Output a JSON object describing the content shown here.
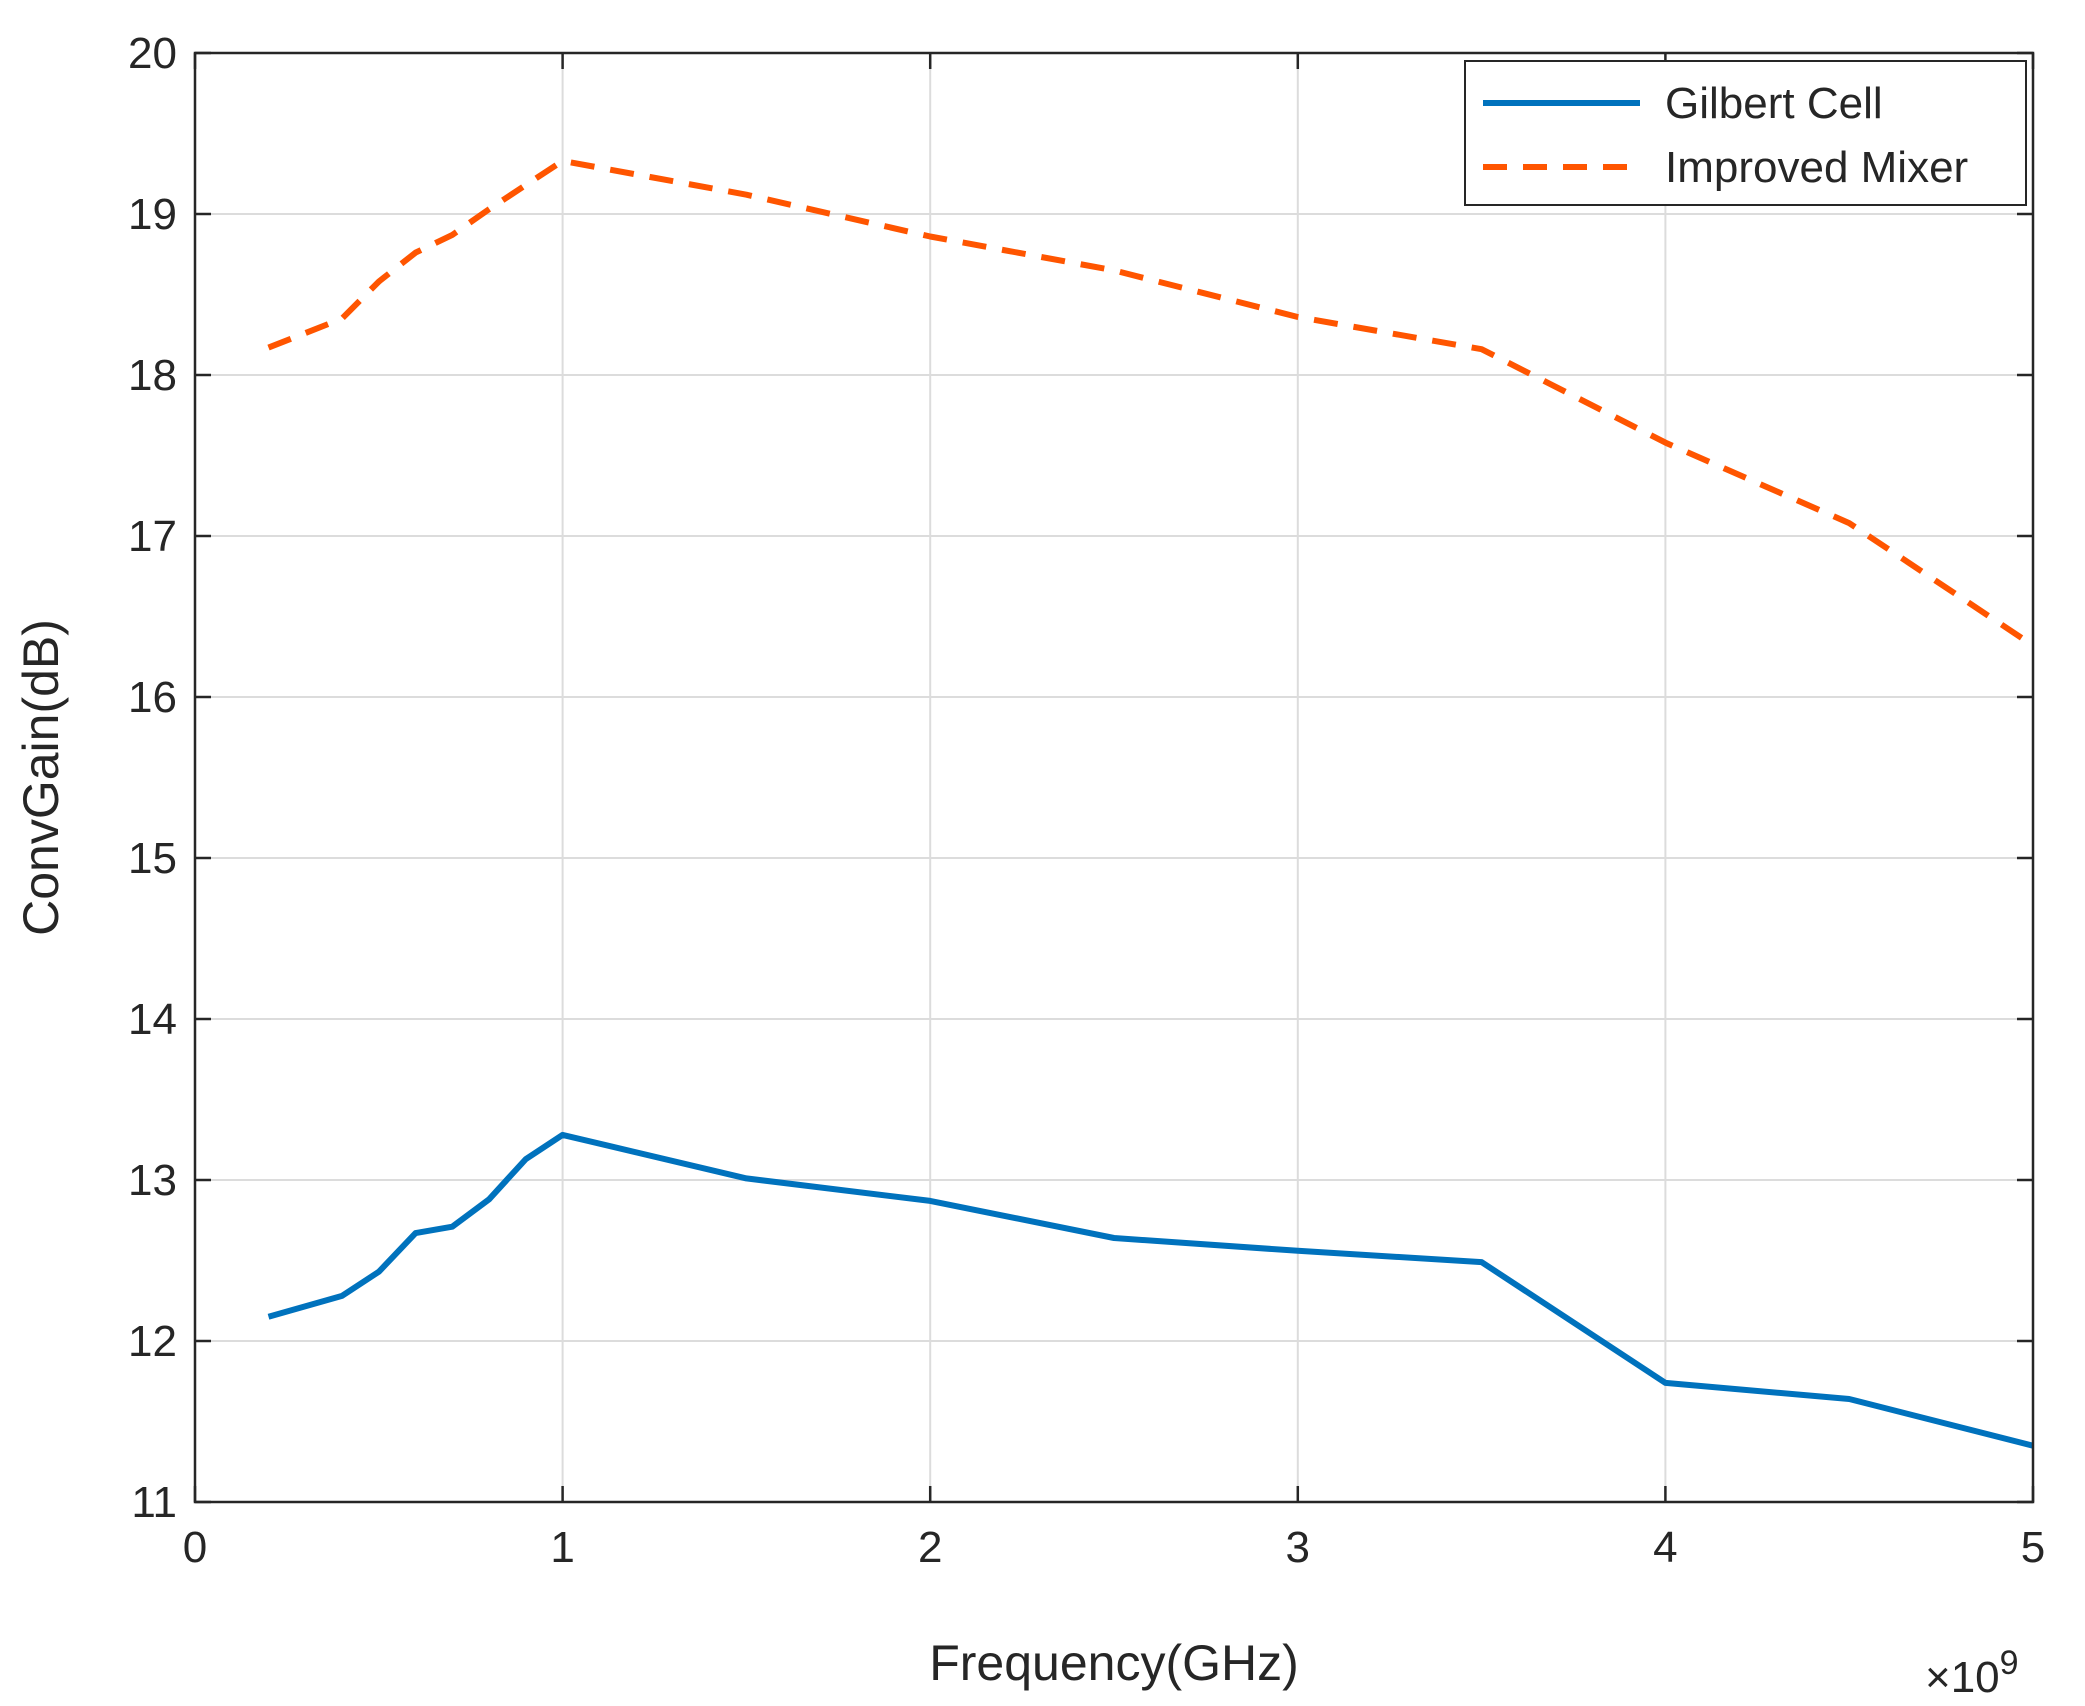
{
  "chart_data": {
    "type": "line",
    "title": "",
    "xlabel": "Frequency(GHz)",
    "ylabel": "ConvGain(dB)",
    "x_exponent_label": "×10",
    "x_exponent_power": "9",
    "xlim": [
      0,
      5
    ],
    "ylim": [
      11,
      20
    ],
    "xticks": [
      0,
      1,
      2,
      3,
      4,
      5
    ],
    "xtick_labels": [
      "0",
      "1",
      "2",
      "3",
      "4",
      "5"
    ],
    "yticks": [
      11,
      12,
      13,
      14,
      15,
      16,
      17,
      18,
      19,
      20
    ],
    "ytick_labels": [
      "11",
      "12",
      "13",
      "14",
      "15",
      "16",
      "17",
      "18",
      "19",
      "20"
    ],
    "grid": true,
    "legend_position": "top-right",
    "series": [
      {
        "name": "Gilbert Cell",
        "color": "#0072BD",
        "style": "solid",
        "x": [
          0.2,
          0.4,
          0.5,
          0.6,
          0.7,
          0.8,
          0.9,
          1.0,
          1.5,
          2.0,
          2.5,
          3.0,
          3.5,
          4.0,
          4.5,
          5.0
        ],
        "y": [
          12.15,
          12.28,
          12.43,
          12.67,
          12.71,
          12.88,
          13.13,
          13.28,
          13.01,
          12.87,
          12.64,
          12.56,
          12.49,
          11.74,
          11.64,
          11.35
        ]
      },
      {
        "name": "Improved Mixer",
        "color": "#FF5500",
        "style": "dashed",
        "x": [
          0.2,
          0.4,
          0.5,
          0.6,
          0.7,
          0.8,
          0.9,
          1.0,
          1.5,
          2.0,
          2.5,
          3.0,
          3.5,
          4.0,
          4.5,
          5.0
        ],
        "y": [
          18.17,
          18.35,
          18.58,
          18.76,
          18.87,
          19.03,
          19.18,
          19.33,
          19.12,
          18.86,
          18.65,
          18.36,
          18.16,
          17.58,
          17.08,
          16.32
        ]
      }
    ]
  }
}
